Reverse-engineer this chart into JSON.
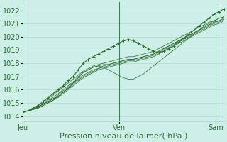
{
  "bg_color": "#ceeee8",
  "grid_color": "#aad4cc",
  "line_color": "#2d6e2d",
  "marker_color": "#2d6e2d",
  "xlabel": "Pression niveau de la mer( hPa )",
  "xlabel_fontsize": 8,
  "ylabel_fontsize": 7,
  "yticks": [
    1014,
    1015,
    1016,
    1017,
    1018,
    1019,
    1020,
    1021,
    1022
  ],
  "ylim": [
    1013.6,
    1022.6
  ],
  "xtick_labels": [
    "Jeu",
    "Ven",
    "Sam"
  ],
  "xtick_positions": [
    0.0,
    0.48,
    0.96
  ],
  "vline_positions": [
    0.0,
    0.48,
    0.96
  ],
  "series": [
    [
      1014.3,
      1014.4,
      1014.6,
      1014.8,
      1015.1,
      1015.4,
      1015.7,
      1016.0,
      1016.3,
      1016.7,
      1017.0,
      1017.5,
      1018.0,
      1018.3,
      1018.5,
      1018.7,
      1018.9,
      1019.1,
      1019.3,
      1019.5,
      1019.7,
      1019.8,
      1019.7,
      1019.5,
      1019.3,
      1019.1,
      1018.9,
      1018.8,
      1018.9,
      1019.1,
      1019.3,
      1019.6,
      1019.9,
      1020.2,
      1020.5,
      1020.8,
      1021.1,
      1021.4,
      1021.7,
      1021.9,
      1022.1
    ],
    [
      1014.3,
      1014.4,
      1014.5,
      1014.7,
      1014.9,
      1015.1,
      1015.3,
      1015.5,
      1015.8,
      1016.1,
      1016.5,
      1016.9,
      1017.3,
      1017.5,
      1017.7,
      1017.8,
      1017.7,
      1017.5,
      1017.3,
      1017.1,
      1016.9,
      1016.8,
      1016.8,
      1017.0,
      1017.2,
      1017.5,
      1017.8,
      1018.1,
      1018.4,
      1018.7,
      1019.0,
      1019.3,
      1019.6,
      1019.9,
      1020.2,
      1020.5,
      1020.8,
      1021.0,
      1021.2,
      1021.4,
      1021.5
    ],
    [
      1014.3,
      1014.4,
      1014.5,
      1014.7,
      1014.9,
      1015.2,
      1015.4,
      1015.7,
      1016.0,
      1016.3,
      1016.6,
      1017.0,
      1017.3,
      1017.5,
      1017.7,
      1017.8,
      1017.9,
      1017.9,
      1018.0,
      1018.1,
      1018.2,
      1018.3,
      1018.3,
      1018.4,
      1018.5,
      1018.6,
      1018.7,
      1018.9,
      1019.1,
      1019.3,
      1019.5,
      1019.7,
      1019.9,
      1020.1,
      1020.3,
      1020.5,
      1020.7,
      1020.9,
      1021.1,
      1021.2,
      1021.4
    ],
    [
      1014.3,
      1014.4,
      1014.5,
      1014.6,
      1014.8,
      1015.0,
      1015.2,
      1015.5,
      1015.8,
      1016.1,
      1016.4,
      1016.7,
      1017.0,
      1017.2,
      1017.4,
      1017.6,
      1017.7,
      1017.8,
      1017.9,
      1018.0,
      1018.1,
      1018.2,
      1018.2,
      1018.3,
      1018.4,
      1018.5,
      1018.6,
      1018.8,
      1019.0,
      1019.2,
      1019.4,
      1019.6,
      1019.8,
      1020.0,
      1020.2,
      1020.4,
      1020.6,
      1020.8,
      1021.0,
      1021.1,
      1021.3
    ],
    [
      1014.3,
      1014.4,
      1014.5,
      1014.6,
      1014.8,
      1015.0,
      1015.2,
      1015.4,
      1015.7,
      1016.0,
      1016.3,
      1016.6,
      1016.9,
      1017.1,
      1017.3,
      1017.5,
      1017.6,
      1017.7,
      1017.8,
      1017.9,
      1018.0,
      1018.1,
      1018.1,
      1018.2,
      1018.3,
      1018.4,
      1018.5,
      1018.7,
      1018.9,
      1019.1,
      1019.3,
      1019.5,
      1019.7,
      1019.9,
      1020.1,
      1020.3,
      1020.5,
      1020.7,
      1020.9,
      1021.0,
      1021.2
    ],
    [
      1014.3,
      1014.4,
      1014.5,
      1014.7,
      1014.9,
      1015.1,
      1015.3,
      1015.6,
      1015.9,
      1016.2,
      1016.5,
      1016.8,
      1017.1,
      1017.3,
      1017.5,
      1017.6,
      1017.8,
      1017.9,
      1018.0,
      1018.1,
      1018.2,
      1018.3,
      1018.3,
      1018.4,
      1018.5,
      1018.6,
      1018.7,
      1018.9,
      1019.1,
      1019.3,
      1019.5,
      1019.7,
      1019.9,
      1020.1,
      1020.3,
      1020.5,
      1020.7,
      1020.9,
      1021.1,
      1021.2,
      1021.4
    ],
    [
      1014.3,
      1014.4,
      1014.6,
      1014.8,
      1015.0,
      1015.3,
      1015.6,
      1015.9,
      1016.2,
      1016.5,
      1016.8,
      1017.1,
      1017.4,
      1017.6,
      1017.8,
      1017.9,
      1018.0,
      1018.1,
      1018.2,
      1018.3,
      1018.4,
      1018.5,
      1018.5,
      1018.6,
      1018.7,
      1018.8,
      1018.9,
      1019.1,
      1019.3,
      1019.5,
      1019.7,
      1019.9,
      1020.1,
      1020.3,
      1020.5,
      1020.7,
      1020.9,
      1021.1,
      1021.2,
      1021.4,
      1021.5
    ]
  ],
  "main_series_idx": 0,
  "figsize": [
    3.2,
    2.0
  ],
  "dpi": 100
}
